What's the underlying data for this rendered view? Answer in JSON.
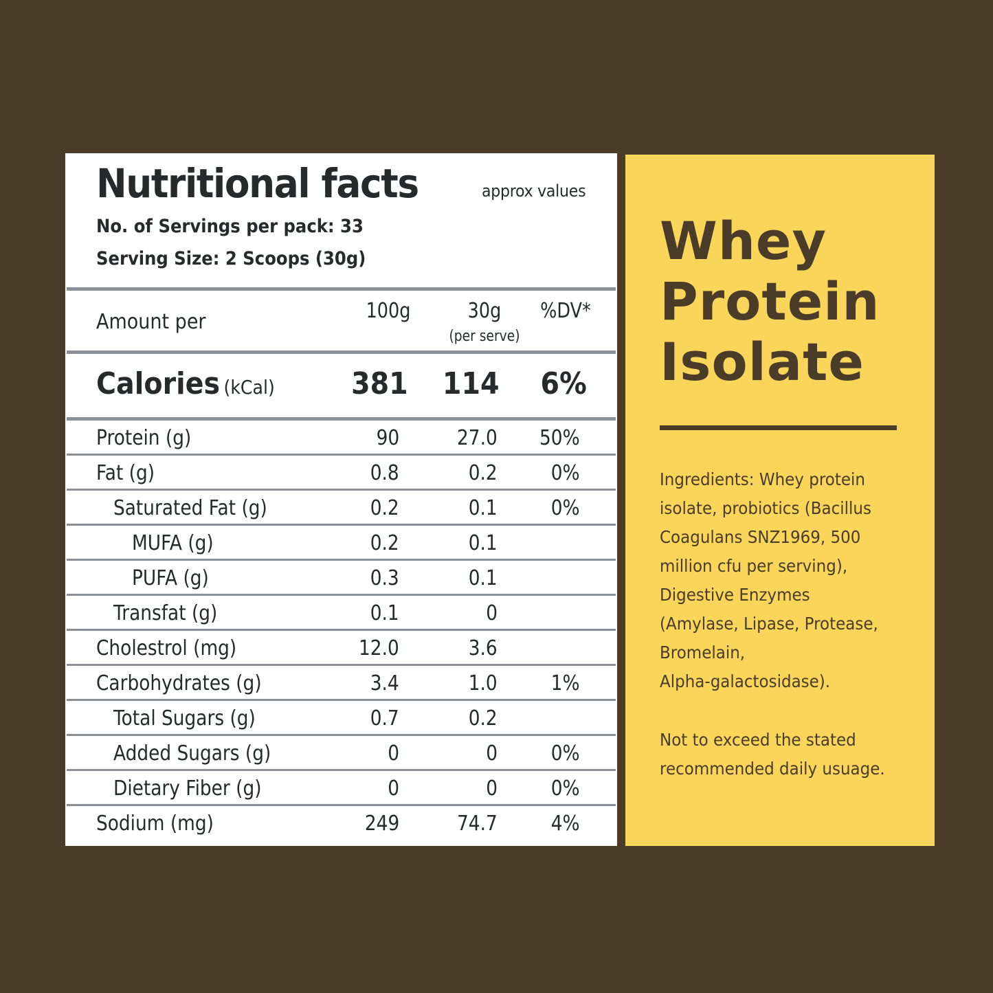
{
  "colors": {
    "background": "#4b3c2a",
    "table_bg": "#ffffff",
    "table_text": "#262a2b",
    "divider": "#8a9096",
    "product_bg": "#f9d65a",
    "product_text": "#4a3c29"
  },
  "nutrition": {
    "title": "Nutritional facts",
    "approx": "approx values",
    "servings": "No. of Servings per pack: 33",
    "serving_size": "Serving Size: 2 Scoops (30g)",
    "header": {
      "label": "Amount per",
      "col_100g": "100g",
      "col_30g": "30g",
      "col_30g_sub": "(per serve)",
      "col_dv": "%DV*"
    },
    "calories": {
      "label": "Calories",
      "unit": "(kCal)",
      "per_100g": "381",
      "per_serve": "114",
      "dv": "6%"
    },
    "rows": [
      {
        "name": "Protein (g)",
        "indent": 0,
        "per_100g": "90",
        "per_serve": "27.0",
        "dv": "50%"
      },
      {
        "name": "Fat (g)",
        "indent": 0,
        "per_100g": "0.8",
        "per_serve": "0.2",
        "dv": "0%"
      },
      {
        "name": "Saturated Fat (g)",
        "indent": 1,
        "per_100g": "0.2",
        "per_serve": "0.1",
        "dv": "0%"
      },
      {
        "name": "MUFA (g)",
        "indent": 2,
        "per_100g": "0.2",
        "per_serve": "0.1",
        "dv": ""
      },
      {
        "name": "PUFA (g)",
        "indent": 2,
        "per_100g": "0.3",
        "per_serve": "0.1",
        "dv": ""
      },
      {
        "name": "Transfat (g)",
        "indent": 1,
        "per_100g": "0.1",
        "per_serve": "0",
        "dv": ""
      },
      {
        "name": "Cholestrol (mg)",
        "indent": 0,
        "per_100g": "12.0",
        "per_serve": "3.6",
        "dv": ""
      },
      {
        "name": "Carbohydrates (g)",
        "indent": 0,
        "per_100g": "3.4",
        "per_serve": "1.0",
        "dv": "1%"
      },
      {
        "name": "Total Sugars (g)",
        "indent": 1,
        "per_100g": "0.7",
        "per_serve": "0.2",
        "dv": ""
      },
      {
        "name": "Added Sugars (g)",
        "indent": 1,
        "per_100g": "0",
        "per_serve": "0",
        "dv": "0%"
      },
      {
        "name": "Dietary Fiber (g)",
        "indent": 1,
        "per_100g": "0",
        "per_serve": "0",
        "dv": "0%"
      },
      {
        "name": "Sodium (mg)",
        "indent": 0,
        "per_100g": "249",
        "per_serve": "74.7",
        "dv": "4%"
      }
    ]
  },
  "product": {
    "title_lines": [
      "Whey",
      "Protein",
      "Isolate"
    ],
    "ingredients_lines": [
      "Ingredients: Whey protein",
      "isolate, probiotics (Bacillus",
      "Coagulans SNZ1969, 500",
      "million cfu per serving),",
      "Digestive Enzymes",
      "(Amylase, Lipase, Protease,",
      "Bromelain,",
      "Alpha-galactosidase)."
    ],
    "warning_lines": [
      "Not to exceed the stated",
      "recommended daily usuage."
    ]
  }
}
